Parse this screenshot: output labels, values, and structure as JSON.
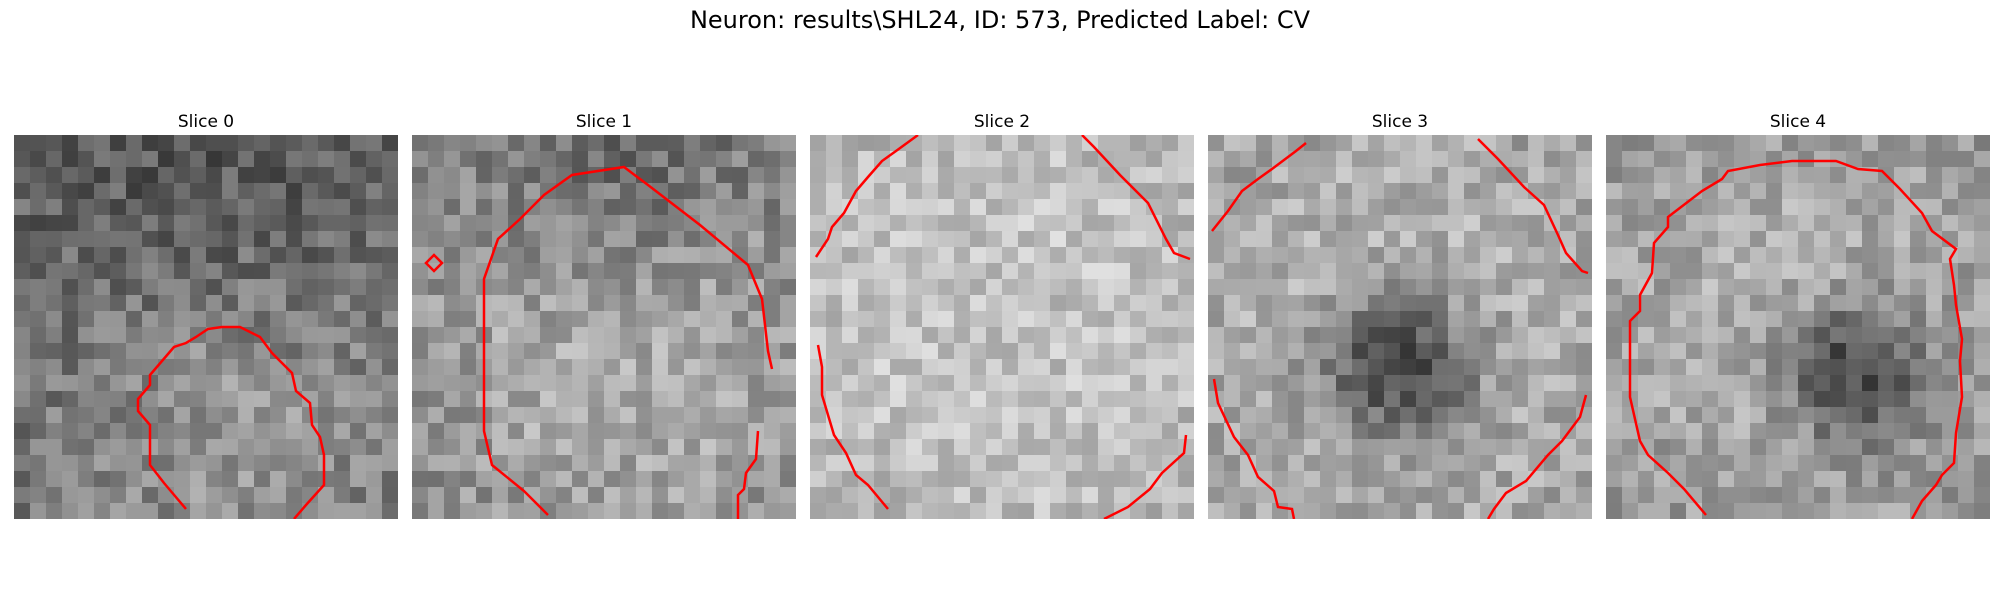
{
  "figure": {
    "title": "Neuron: results\\SHL24, ID: 573, Predicted Label: CV"
  },
  "colors": {
    "contour": "#ff0000",
    "background": "#ffffff"
  },
  "panels": [
    {
      "title": "Slice 0"
    },
    {
      "title": "Slice 1"
    },
    {
      "title": "Slice 2"
    },
    {
      "title": "Slice 3"
    },
    {
      "title": "Slice 4"
    }
  ]
}
